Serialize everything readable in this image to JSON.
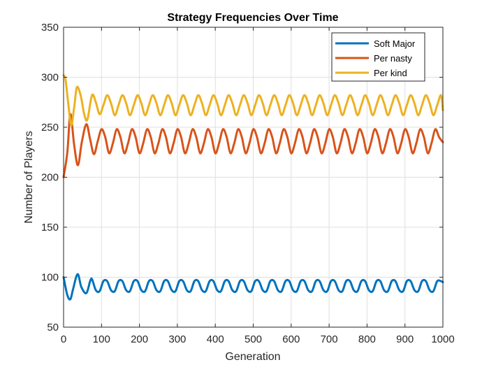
{
  "chart_data": {
    "type": "line",
    "title": "Strategy Frequencies Over Time",
    "xlabel": "Generation",
    "ylabel": "Number of Players",
    "xlim": [
      0,
      1000
    ],
    "ylim": [
      50,
      350
    ],
    "xticks": [
      0,
      100,
      200,
      300,
      400,
      500,
      600,
      700,
      800,
      900,
      1000
    ],
    "yticks": [
      50,
      100,
      150,
      200,
      250,
      300,
      350
    ],
    "grid": true,
    "legend_position": "top-right",
    "series": [
      {
        "name": "Soft Major",
        "color": "#0072BD",
        "x": [
          0,
          10,
          18,
          25,
          37,
          47,
          60,
          70,
          75,
          85,
          95,
          105,
          115,
          125,
          135,
          145,
          155,
          165,
          175,
          185,
          195,
          205,
          215,
          225,
          235,
          245,
          255,
          265,
          275,
          285,
          295,
          305,
          315,
          325,
          335,
          345,
          355,
          365,
          375,
          385,
          395,
          405,
          415,
          425,
          435,
          445,
          455,
          465,
          475,
          485,
          495,
          505,
          515,
          525,
          535,
          545,
          555,
          565,
          575,
          585,
          595,
          605,
          615,
          625,
          635,
          645,
          655,
          665,
          675,
          685,
          695,
          705,
          715,
          725,
          735,
          745,
          755,
          765,
          775,
          785,
          795,
          805,
          815,
          825,
          835,
          845,
          855,
          865,
          875,
          885,
          895,
          905,
          915,
          925,
          935,
          945,
          955,
          965,
          975,
          985,
          995,
          1000
        ],
        "y": [
          100,
          82,
          78,
          88,
          103,
          90,
          84,
          96,
          98,
          87,
          86,
          96,
          96,
          87,
          86,
          96,
          96,
          87,
          86,
          96,
          96,
          87,
          86,
          96,
          96,
          87,
          86,
          96,
          96,
          87,
          86,
          96,
          96,
          87,
          86,
          96,
          96,
          87,
          86,
          96,
          96,
          87,
          86,
          96,
          96,
          87,
          86,
          96,
          96,
          87,
          86,
          96,
          96,
          87,
          86,
          96,
          96,
          87,
          86,
          96,
          96,
          87,
          86,
          96,
          96,
          87,
          86,
          96,
          96,
          87,
          86,
          96,
          96,
          87,
          86,
          96,
          96,
          87,
          86,
          96,
          96,
          87,
          86,
          96,
          96,
          87,
          86,
          96,
          96,
          87,
          86,
          96,
          96,
          87,
          86,
          96,
          96,
          87,
          86,
          96,
          96,
          95
        ]
      },
      {
        "name": "Per nasty",
        "color": "#D95319",
        "x": [
          0,
          10,
          18,
          28,
          38,
          48,
          60,
          70,
          80,
          90,
          100,
          110,
          120,
          130,
          140,
          150,
          160,
          170,
          180,
          190,
          200,
          210,
          220,
          230,
          240,
          250,
          260,
          270,
          280,
          290,
          300,
          310,
          320,
          330,
          340,
          350,
          360,
          370,
          380,
          390,
          400,
          410,
          420,
          430,
          440,
          450,
          460,
          470,
          480,
          490,
          500,
          510,
          520,
          530,
          540,
          550,
          560,
          570,
          580,
          590,
          600,
          610,
          620,
          630,
          640,
          650,
          660,
          670,
          680,
          690,
          700,
          710,
          720,
          730,
          740,
          750,
          760,
          770,
          780,
          790,
          800,
          810,
          820,
          830,
          840,
          850,
          860,
          870,
          880,
          890,
          900,
          910,
          920,
          930,
          940,
          950,
          960,
          970,
          980,
          990,
          1000
        ],
        "y": [
          200,
          225,
          263,
          232,
          212,
          235,
          253,
          238,
          223,
          236,
          248,
          240,
          224,
          234,
          248,
          240,
          224,
          234,
          248,
          240,
          224,
          234,
          248,
          240,
          224,
          234,
          248,
          240,
          224,
          234,
          248,
          240,
          224,
          234,
          248,
          240,
          224,
          234,
          248,
          240,
          224,
          234,
          248,
          240,
          224,
          234,
          248,
          240,
          224,
          234,
          248,
          240,
          224,
          234,
          248,
          240,
          224,
          234,
          248,
          240,
          224,
          234,
          248,
          240,
          224,
          234,
          248,
          240,
          224,
          234,
          248,
          240,
          224,
          234,
          248,
          240,
          224,
          234,
          248,
          240,
          224,
          234,
          248,
          240,
          224,
          234,
          248,
          240,
          224,
          234,
          248,
          240,
          224,
          234,
          248,
          240,
          224,
          234,
          248,
          240,
          235
        ]
      },
      {
        "name": "Per kind",
        "color": "#EDB120",
        "x": [
          0,
          5,
          12,
          20,
          28,
          35,
          45,
          55,
          63,
          75,
          85,
          95,
          105,
          115,
          125,
          135,
          145,
          155,
          165,
          175,
          185,
          195,
          205,
          215,
          225,
          235,
          245,
          255,
          265,
          275,
          285,
          295,
          305,
          315,
          325,
          335,
          345,
          355,
          365,
          375,
          385,
          395,
          405,
          415,
          425,
          435,
          445,
          455,
          465,
          475,
          485,
          495,
          505,
          515,
          525,
          535,
          545,
          555,
          565,
          575,
          585,
          595,
          605,
          615,
          625,
          635,
          645,
          655,
          665,
          675,
          685,
          695,
          705,
          715,
          725,
          735,
          745,
          755,
          765,
          775,
          785,
          795,
          805,
          815,
          825,
          835,
          845,
          855,
          865,
          875,
          885,
          895,
          905,
          915,
          925,
          935,
          945,
          955,
          965,
          975,
          985,
          995,
          1000
        ],
        "y": [
          302,
          298,
          275,
          252,
          270,
          290,
          282,
          262,
          258,
          282,
          275,
          263,
          272,
          282,
          274,
          262,
          272,
          282,
          274,
          262,
          272,
          282,
          274,
          262,
          272,
          282,
          274,
          262,
          272,
          282,
          274,
          262,
          272,
          282,
          274,
          262,
          272,
          282,
          274,
          262,
          272,
          282,
          274,
          262,
          272,
          282,
          274,
          262,
          272,
          282,
          274,
          262,
          272,
          282,
          274,
          262,
          272,
          282,
          274,
          262,
          272,
          282,
          274,
          262,
          272,
          282,
          274,
          262,
          272,
          282,
          274,
          262,
          272,
          282,
          274,
          262,
          272,
          282,
          274,
          262,
          272,
          282,
          274,
          262,
          272,
          282,
          274,
          262,
          272,
          282,
          274,
          262,
          272,
          282,
          274,
          262,
          272,
          282,
          274,
          262,
          272,
          282,
          267
        ]
      }
    ]
  }
}
